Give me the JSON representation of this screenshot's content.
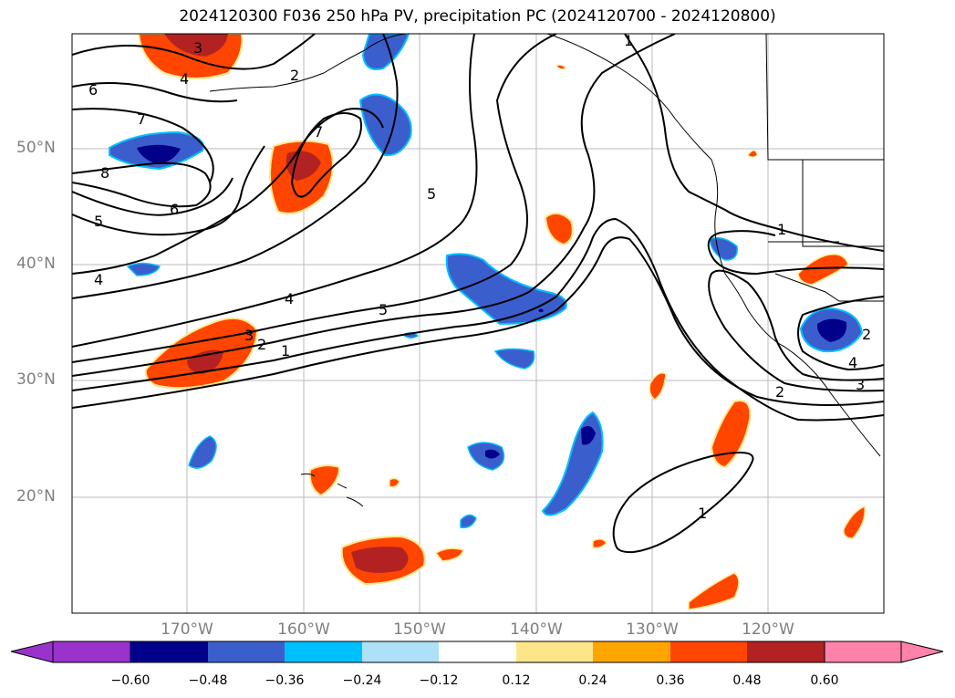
{
  "title": "2024120300 F036 250 hPa PV, precipitation PC (2024120700 - 2024120800)",
  "map": {
    "type": "contour-fill map",
    "lat_labels": [
      "50°N",
      "40°N",
      "30°N",
      "20°N"
    ],
    "lon_labels": [
      "170°W",
      "160°W",
      "150°W",
      "140°W",
      "130°W",
      "120°W"
    ],
    "pv_contour_labels": [
      "3",
      "4",
      "2",
      "5",
      "6",
      "7",
      "8",
      "6",
      "5",
      "4",
      "7",
      "5",
      "4",
      "3",
      "2",
      "1",
      "1",
      "2",
      "3",
      "4",
      "2",
      "1",
      "1"
    ],
    "colors": {
      "deep_purple": "#9933cc",
      "navy": "#00008b",
      "royal_blue": "#3a5fcd",
      "deep_sky": "#00bfff",
      "light_blue": "#aee0f8",
      "light_yellow": "#fde68a",
      "orange": "#ffa500",
      "orange_red": "#ff4500",
      "firebrick": "#b22222",
      "pink": "#ff82ab"
    }
  },
  "colorbar": {
    "labels": [
      "−0.60",
      "−0.48",
      "−0.36",
      "−0.24",
      "−0.12",
      "0.12",
      "0.24",
      "0.36",
      "0.48",
      "0.60"
    ],
    "segment_colors": [
      "#9933cc",
      "#00008b",
      "#3a5fcd",
      "#00bfff",
      "#aee0f8",
      "#ffffff",
      "#fde68a",
      "#ffa500",
      "#ff4500",
      "#b22222",
      "#ff82ab"
    ]
  }
}
